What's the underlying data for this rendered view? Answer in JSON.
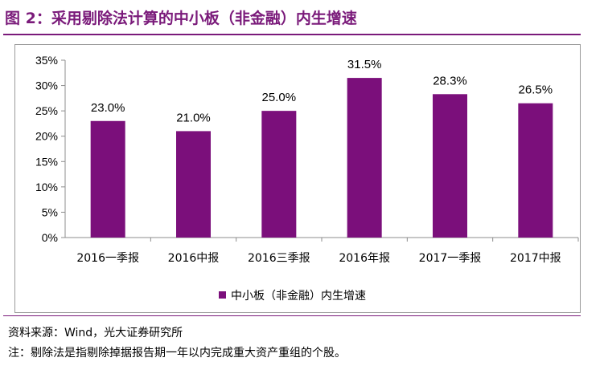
{
  "title": "图 2：采用剔除法计算的中小板（非金融）内生增速",
  "source": "资料来源：Wind，光大证券研究所",
  "note": "注：剔除法是指剔除掉据报告期一年以内完成重大资产重组的个股。",
  "colors": {
    "accent": "#7a1a7a",
    "bar": "#7b0f7b"
  },
  "chart_data": {
    "type": "bar",
    "categories": [
      "2016一季报",
      "2016中报",
      "2016三季报",
      "2016年报",
      "2017一季报",
      "2017中报"
    ],
    "series": [
      {
        "name": "中小板（非金融）内生增速",
        "values": [
          23.0,
          21.0,
          25.0,
          31.5,
          28.3,
          26.5
        ]
      }
    ],
    "data_labels": [
      "23.0%",
      "21.0%",
      "25.0%",
      "31.5%",
      "28.3%",
      "26.5%"
    ],
    "y_ticks": [
      "0%",
      "5%",
      "10%",
      "15%",
      "20%",
      "25%",
      "30%",
      "35%"
    ],
    "ylim": [
      0,
      35
    ],
    "legend_position": "bottom",
    "grid": false
  }
}
